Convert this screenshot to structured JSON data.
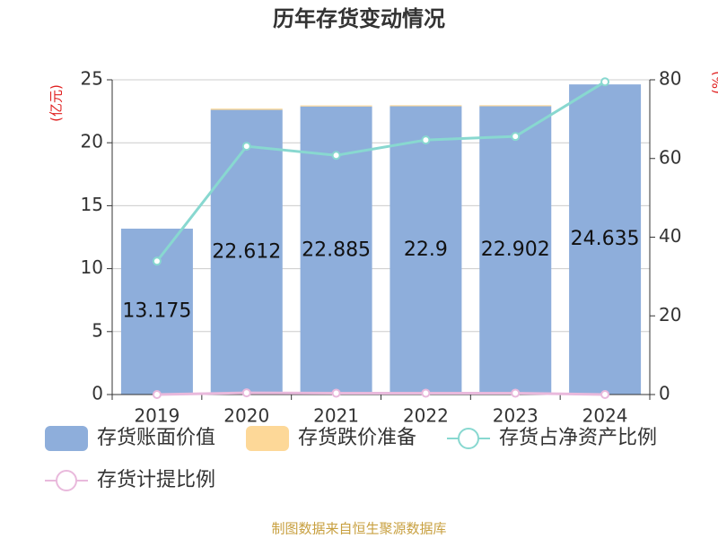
{
  "chart_data": {
    "type": "bar",
    "title": "历年存货变动情况",
    "ylabel": "(亿元)",
    "y2label": "(%)",
    "categories": [
      "2019",
      "2020",
      "2021",
      "2022",
      "2023",
      "2024"
    ],
    "series": [
      {
        "name": "存货账面价值",
        "type": "bar",
        "color": "#8eaedb",
        "values": [
          13.175,
          22.612,
          22.885,
          22.9,
          22.902,
          24.635
        ]
      },
      {
        "name": "存货跌价准备",
        "type": "bar",
        "color": "#fdd898",
        "values": [
          0,
          0.1,
          0.08,
          0.08,
          0.08,
          0
        ]
      },
      {
        "name": "存货占净资产比例",
        "type": "line",
        "axis": "y2",
        "color": "#88d8d0",
        "values": [
          33.9,
          63.1,
          60.8,
          64.7,
          65.6,
          79.5
        ]
      },
      {
        "name": "存货计提比例",
        "type": "line",
        "axis": "y2",
        "color": "#e9b9dc",
        "values": [
          0,
          0.44,
          0.35,
          0.35,
          0.35,
          0
        ]
      }
    ],
    "stacked": true,
    "ylim": [
      0,
      25
    ],
    "yticks": [
      0,
      5,
      10,
      15,
      20,
      25
    ],
    "y2lim": [
      0,
      80
    ],
    "y2ticks": [
      0,
      20,
      40,
      60,
      80
    ],
    "grid": true,
    "source": "制图数据来自恒生聚源数据库"
  }
}
